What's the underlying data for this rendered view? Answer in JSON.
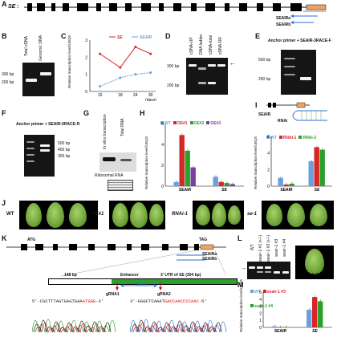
{
  "panelA": {
    "label": "A",
    "gene": "SE :",
    "probe1": "SEAIRa",
    "probe2": "SEAIRb"
  },
  "panelB": {
    "label": "B",
    "lanes": [
      "Total cDNA",
      "Genomic DNA"
    ],
    "markers": [
      "300 bp",
      "200 bp"
    ]
  },
  "panelC": {
    "label": "C",
    "legend": [
      "SE",
      "SEAIR"
    ],
    "xlabel": "(days)",
    "ylabel": "Relative transcription level/UBQ5"
  },
  "panelD": {
    "label": "D",
    "lanes": [
      "cDNA-UP",
      "DNA ladder",
      "cDNA-total",
      "cDNA-DR"
    ],
    "markers": [
      "300 bp",
      "200 bp"
    ]
  },
  "panelE": {
    "label": "E",
    "title": "Anchor primer + SEAIR-3RACE-F",
    "markers": [
      "500 bp",
      "250 bp"
    ]
  },
  "panelF": {
    "label": "F",
    "title": "Anchor primer + SEAIR-5RACE-R",
    "markers": [
      "500 bp",
      "400 bp",
      "300 bp"
    ]
  },
  "panelG": {
    "label": "G",
    "lanes": [
      "In vitro transcription",
      "Total RNA"
    ],
    "caption": "Ribosomal RNA"
  },
  "panelH": {
    "label": "H",
    "legend": [
      "WT",
      "OE#1",
      "OE#2",
      "OE#3"
    ],
    "ylabel": "Relative transcription level/UBQ5",
    "groups": [
      "SEAIR",
      "SE"
    ]
  },
  "panelI": {
    "label": "I",
    "legend": [
      "WT",
      "RNAi-1",
      "RNAi-2"
    ],
    "ylabel": "Relative transcription level/UBQ5",
    "groups": [
      "SEAIR",
      "SE"
    ],
    "construct": "SEAIR",
    "rnai": "RNAi"
  },
  "panelJ": {
    "label": "J",
    "genotypes": [
      "WT",
      "OE#1",
      "RNAi-1",
      "se-1"
    ]
  },
  "panelK": {
    "label": "K",
    "atg": "ATG",
    "tag": "TAG",
    "probes": [
      "SEAIRa",
      "SEAIRb"
    ],
    "len1": "148 bp",
    "enhancer": "Enhancer",
    "utr": "3' UTR of SE (304 bp)",
    "g1": "gRNA1",
    "del": "delete",
    "g2": "gRNA2",
    "seq1_pre": "5'-CGCTTTAGTGAGTGAA",
    "seq1_red": "ATGGG",
    "seq1_post": "-3'",
    "seq2_pre": "3'-GGGCTCAAAT",
    "seq2_red": "GACCAACCCCAAC",
    "seq2_post": "-5'"
  },
  "panelL": {
    "label": "L",
    "lanes": [
      "WT",
      "seair-1 #1 (+/-)",
      "seair-1 #2 (+/-)",
      "seair-1 #3",
      "seair-1 #4"
    ],
    "leaf": "seair-1"
  },
  "panelM": {
    "label": "M",
    "legend": [
      "WT",
      "seair-1 #3",
      "seair-1 #4"
    ],
    "ylabel": "Relative transcription level/UBQ5"
  },
  "chart_data": [
    {
      "panel": "C",
      "type": "line",
      "x": [
        10,
        18,
        24,
        30
      ],
      "series": [
        {
          "name": "SE",
          "values": [
            2.2,
            1.4,
            2.6,
            2.2
          ]
        },
        {
          "name": "SEAIR",
          "values": [
            0.3,
            0.8,
            1.0,
            1.1
          ]
        }
      ],
      "xlabel": "(days)",
      "ylabel": "Relative transcription level/UBQ5",
      "ylim": [
        0,
        3
      ],
      "colors": {
        "SE": "#d62728",
        "SEAIR": "#6ca0dc"
      }
    },
    {
      "panel": "H",
      "type": "bar",
      "categories": [
        "SEAIR",
        "SE"
      ],
      "series": [
        {
          "name": "WT",
          "values": [
            0.4,
            0.9
          ]
        },
        {
          "name": "OE#1",
          "values": [
            4.9,
            0.4
          ]
        },
        {
          "name": "OE#2",
          "values": [
            3.4,
            0.3
          ]
        },
        {
          "name": "OE#3",
          "values": [
            1.8,
            0.2
          ]
        }
      ],
      "ylim": [
        0,
        6
      ],
      "colors": [
        "#6ca0dc",
        "#d62728",
        "#2ca02c",
        "#7b3fa0"
      ]
    },
    {
      "panel": "I",
      "type": "bar",
      "categories": [
        "SEAIR",
        "SE"
      ],
      "series": [
        {
          "name": "WT",
          "values": [
            1.0,
            3.0
          ]
        },
        {
          "name": "RNAi-1",
          "values": [
            0.2,
            4.7
          ]
        },
        {
          "name": "RNAi-2",
          "values": [
            0.3,
            4.4
          ]
        }
      ],
      "ylim": [
        0,
        6
      ],
      "colors": [
        "#6ca0dc",
        "#d62728",
        "#2ca02c"
      ]
    },
    {
      "panel": "M",
      "type": "bar",
      "categories": [
        "SEAIR",
        "SE"
      ],
      "series": [
        {
          "name": "WT",
          "values": [
            0.15,
            2.5
          ]
        },
        {
          "name": "seair-1 #3",
          "values": [
            0.03,
            4.3
          ]
        },
        {
          "name": "seair-1 #4",
          "values": [
            0.03,
            3.7
          ]
        }
      ],
      "ylim": [
        0,
        5
      ],
      "colors": [
        "#6ca0dc",
        "#d62728",
        "#2ca02c"
      ]
    }
  ]
}
